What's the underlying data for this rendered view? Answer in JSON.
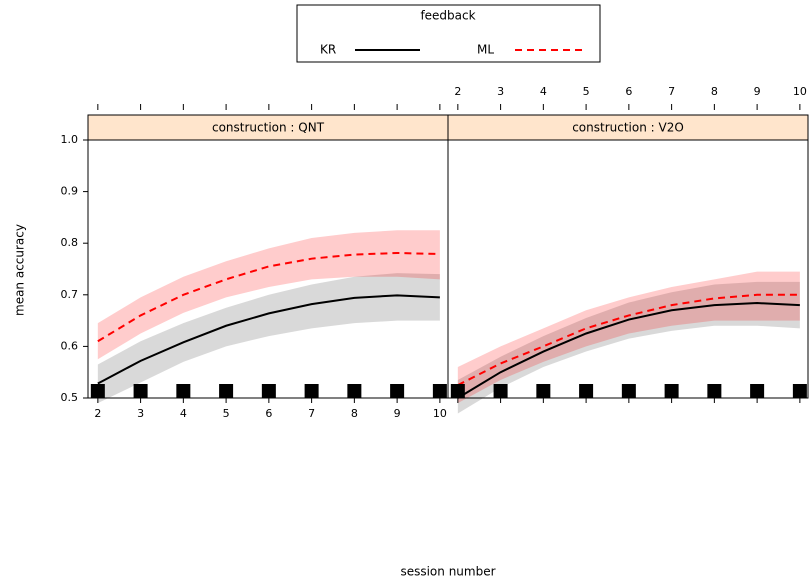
{
  "chart_data": [
    {
      "type": "line",
      "title": "construction : QNT",
      "legend_title": "feedback",
      "xlabel": "session number",
      "ylabel": "mean accuracy",
      "x": [
        2,
        3,
        4,
        5,
        6,
        7,
        8,
        9,
        10
      ],
      "xlim": [
        1.77,
        10.19
      ],
      "xticks": [
        2,
        3,
        4,
        5,
        6,
        7,
        8,
        9,
        10
      ],
      "x_tick_labels": "bottom",
      "ylim": [
        0.5,
        1.0
      ],
      "yticks": [
        0.5,
        0.6,
        0.7,
        0.8,
        0.9,
        {
          "value": 1.0,
          "label": "1.0"
        }
      ],
      "series": [
        {
          "name": "KR",
          "color": "#000000",
          "values": [
            0.528,
            0.572,
            0.608,
            0.64,
            0.664,
            0.682,
            0.694,
            0.699,
            0.695
          ],
          "lower": [
            0.49,
            0.53,
            0.57,
            0.6,
            0.62,
            0.635,
            0.645,
            0.65,
            0.65
          ],
          "upper": [
            0.565,
            0.61,
            0.645,
            0.675,
            0.7,
            0.72,
            0.735,
            0.742,
            0.74
          ]
        },
        {
          "name": "ML",
          "color": "#ff0000",
          "values": [
            0.61,
            0.66,
            0.7,
            0.73,
            0.755,
            0.77,
            0.778,
            0.781,
            0.779
          ],
          "lower": [
            0.575,
            0.625,
            0.665,
            0.695,
            0.715,
            0.73,
            0.735,
            0.735,
            0.73
          ],
          "upper": [
            0.645,
            0.695,
            0.735,
            0.765,
            0.79,
            0.81,
            0.82,
            0.825,
            0.825
          ]
        }
      ]
    },
    {
      "type": "line",
      "title": "construction : V2O",
      "x": [
        2,
        3,
        4,
        5,
        6,
        7,
        8,
        9,
        10
      ],
      "xlim": [
        1.77,
        10.19
      ],
      "xticks": [
        2,
        3,
        4,
        5,
        6,
        7,
        8,
        9,
        10
      ],
      "x_tick_labels": "top",
      "ylim": [
        0.5,
        1.0
      ],
      "series": [
        {
          "name": "KR",
          "color": "#000000",
          "values": [
            0.5,
            0.55,
            0.59,
            0.625,
            0.652,
            0.67,
            0.68,
            0.684,
            0.68
          ],
          "lower": [
            0.47,
            0.52,
            0.56,
            0.59,
            0.615,
            0.63,
            0.64,
            0.64,
            0.635
          ],
          "upper": [
            0.535,
            0.58,
            0.62,
            0.655,
            0.685,
            0.705,
            0.72,
            0.725,
            0.725
          ]
        },
        {
          "name": "ML",
          "color": "#ff0000",
          "values": [
            0.525,
            0.567,
            0.6,
            0.635,
            0.66,
            0.68,
            0.693,
            0.7,
            0.7
          ],
          "lower": [
            0.49,
            0.535,
            0.57,
            0.6,
            0.625,
            0.64,
            0.65,
            0.65,
            0.65
          ],
          "upper": [
            0.56,
            0.6,
            0.635,
            0.67,
            0.695,
            0.715,
            0.73,
            0.745,
            0.745
          ]
        }
      ]
    }
  ]
}
